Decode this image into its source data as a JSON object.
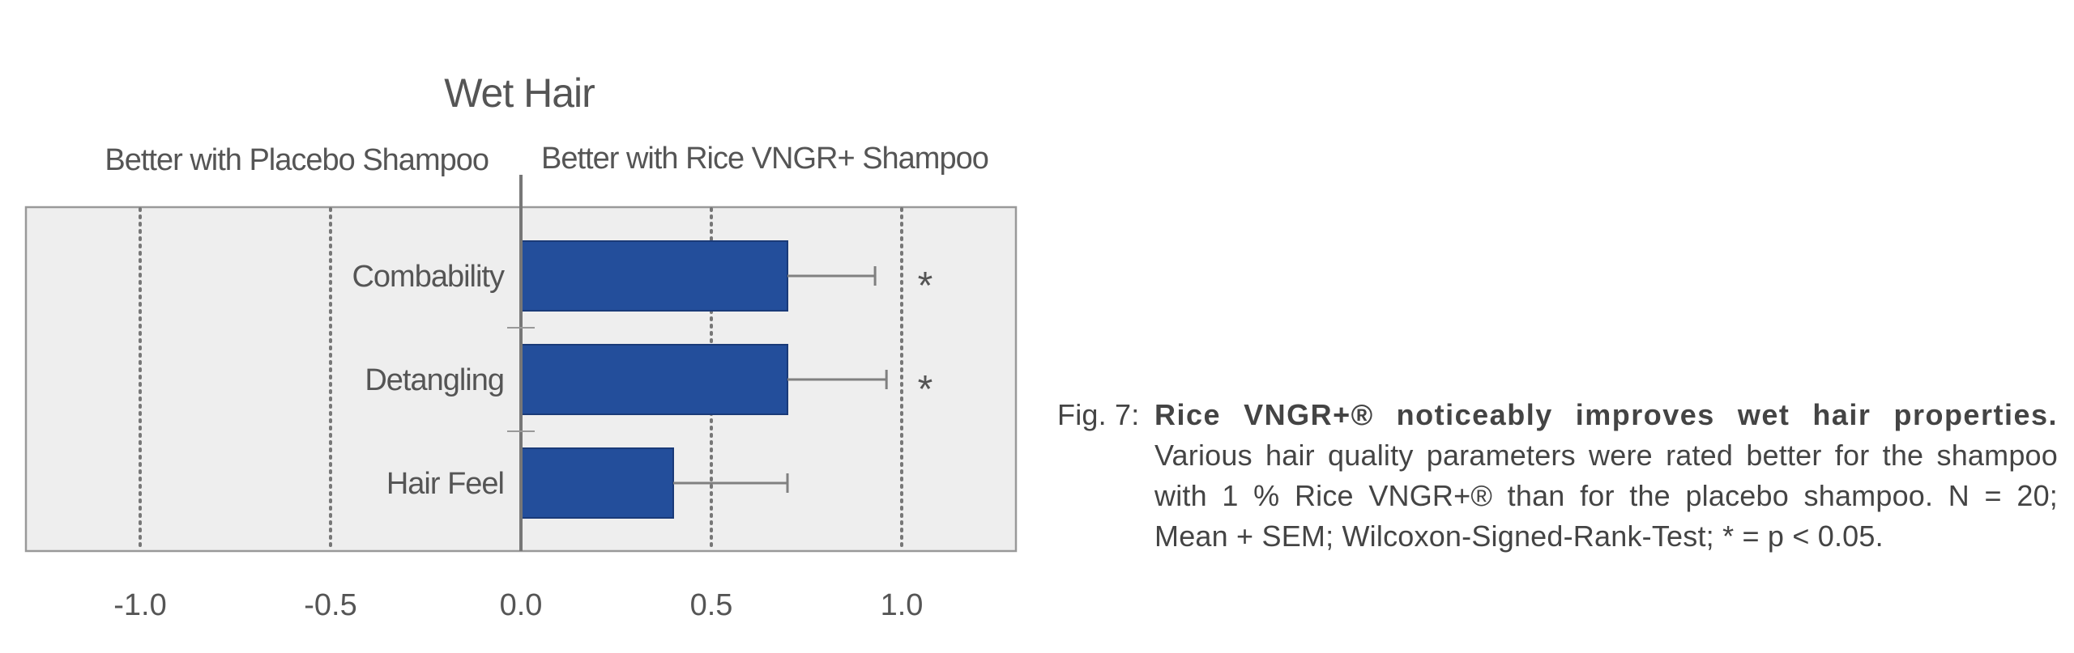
{
  "chart_data": {
    "type": "bar",
    "orientation": "horizontal",
    "title": "Wet Hair",
    "left_side_label": "Better with Placebo Shampoo",
    "right_side_label": "Better with Rice VNGR+ Shampoo",
    "categories": [
      "Combability",
      "Detangling",
      "Hair Feel"
    ],
    "values": [
      0.7,
      0.7,
      0.4
    ],
    "sem": [
      0.23,
      0.26,
      0.3
    ],
    "significance": [
      "*",
      "*",
      ""
    ],
    "xlim": [
      -1.3,
      1.3
    ],
    "xticks": [
      "-1.0",
      "-0.5",
      "0.0",
      "0.5",
      "1.0"
    ],
    "grid": "vertical dotted lines at -1.0, -0.5, 0.5, 1.0",
    "bar_color": "#234e9b",
    "plot_background": "#eeeeee"
  },
  "caption": {
    "label": "Fig. 7:",
    "bold_text": "Rice VNGR+® noticeably improves wet hair properties.",
    "body_text": "Various hair quality parameters were rated better for the shampoo with 1 % Rice VNGR+® than for the placebo shampoo. N = 20; Mean + SEM; Wilcoxon-Signed-Rank-Test; * = p < 0.05."
  }
}
